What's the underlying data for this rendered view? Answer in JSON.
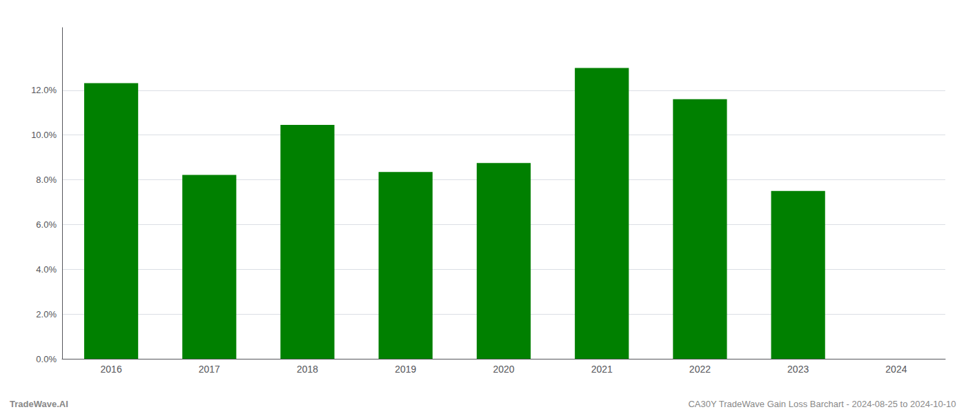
{
  "chart_data": {
    "type": "bar",
    "categories": [
      "2016",
      "2017",
      "2018",
      "2019",
      "2020",
      "2021",
      "2022",
      "2023",
      "2024"
    ],
    "values": [
      0.1232,
      0.0822,
      0.1045,
      0.0835,
      0.0875,
      0.13,
      0.116,
      0.075,
      0.0
    ],
    "color": "#008000",
    "ylim": [
      0,
      0.148
    ],
    "yticks": [
      {
        "value": 0.0,
        "label": "0.0%"
      },
      {
        "value": 0.02,
        "label": "2.0%"
      },
      {
        "value": 0.04,
        "label": "4.0%"
      },
      {
        "value": 0.06,
        "label": "6.0%"
      },
      {
        "value": 0.08,
        "label": "8.0%"
      },
      {
        "value": 0.1,
        "label": "10.0%"
      },
      {
        "value": 0.12,
        "label": "12.0%"
      }
    ],
    "grid": true,
    "annotations": [
      "TradeWave.AI",
      "CA30Y TradeWave Gain Loss Barchart - 2024-08-25 to 2024-10-10"
    ]
  }
}
